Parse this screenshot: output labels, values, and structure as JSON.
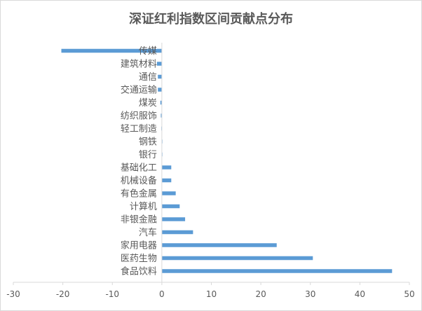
{
  "chart_data": {
    "type": "bar",
    "orientation": "horizontal",
    "title": "深证红利指数区间贡献点分布",
    "xlabel": "",
    "ylabel": "",
    "xlim": [
      -30,
      50
    ],
    "xticks": [
      -30,
      -20,
      -10,
      0,
      10,
      20,
      30,
      40,
      50
    ],
    "grid": false,
    "legend": "none",
    "bar_color": "#5b9bd5",
    "categories": [
      "传媒",
      "建筑材料",
      "通信",
      "交通运输",
      "煤炭",
      "纺织服饰",
      "轻工制造",
      "钢铁",
      "银行",
      "基础化工",
      "机械设备",
      "有色金属",
      "计算机",
      "非银金融",
      "汽车",
      "家用电器",
      "医药生物",
      "食品饮料"
    ],
    "values": [
      -20.3,
      -1.0,
      -0.8,
      -0.8,
      -0.3,
      -0.2,
      -0.1,
      0.1,
      0.1,
      1.9,
      1.9,
      2.8,
      3.6,
      4.7,
      6.3,
      23.2,
      30.5,
      46.5
    ]
  }
}
